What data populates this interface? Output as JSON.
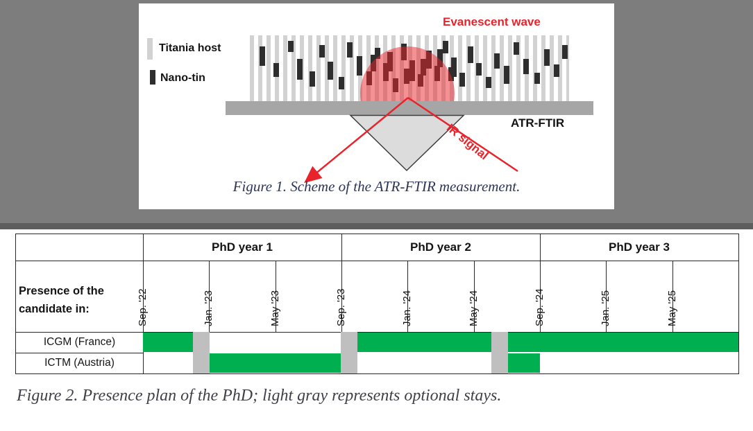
{
  "colors": {
    "page-gray": "#7d7d7d",
    "red": "#e8232b",
    "green": "#00b050",
    "optional-gray": "#bfbfbf",
    "stripe-gray": "#d2d2d2",
    "tin-dark": "#2e2e2e",
    "surface-gray": "#a6a6a6",
    "prism-fill": "#dcdcdc",
    "caption1-color": "#2d3559",
    "caption2-color": "#3f4049"
  },
  "figure1": {
    "evanescent_label": "Evanescent wave",
    "legend": {
      "titania": "Titania host",
      "nanotin": "Nano-tin"
    },
    "atr_label": "ATR-FTIR",
    "ir_signal_label": "IR signal",
    "caption": "Figure 1. Scheme of the ATR-FTIR measurement."
  },
  "figure2": {
    "caption": "Figure 2. Presence plan of the PhD; light gray represents optional stays.",
    "table": {
      "years": [
        "PhD year 1",
        "PhD year 2",
        "PhD year 3"
      ],
      "months": [
        "Sep. '22",
        "Jan. '23",
        "May '23",
        "Sep. '23",
        "Jan. '24",
        "May '24",
        "Sep. '24",
        "Jan. '25",
        "May '25"
      ],
      "presence_header_line1": "Presence of the",
      "presence_header_line2": "candidate in:",
      "rows": [
        {
          "label": "ICGM (France)",
          "segments": [
            {
              "start": 0,
              "end": 8.39
            },
            {
              "start": 36.01,
              "end": 58.51
            },
            {
              "start": 61.31,
              "end": 100
            }
          ]
        },
        {
          "label": "ICTM (Austria)",
          "segments": [
            {
              "start": 11.19,
              "end": 33.22
            },
            {
              "start": 61.31,
              "end": 66.67
            }
          ]
        }
      ],
      "optional_segments": [
        {
          "start": 8.39,
          "end": 11.19
        },
        {
          "start": 33.22,
          "end": 36.01
        },
        {
          "start": 58.51,
          "end": 61.31
        }
      ]
    }
  },
  "chart_data": {
    "type": "gantt",
    "title": "Presence plan of the PhD",
    "categories": [
      "ICGM (France)",
      "ICTM (Austria)"
    ],
    "timeline": [
      "Sep. '22",
      "Jan. '23",
      "May '23",
      "Sep. '23",
      "Jan. '24",
      "May '24",
      "Sep. '24",
      "Jan. '25",
      "May '25"
    ],
    "presence": {
      "ICGM (France)": [
        "Sep '22 - Nov '22",
        "Oct '23 - May '24",
        "Jul '24 - Aug '25"
      ],
      "ICTM (Austria)": [
        "Jan '23 - Aug '23",
        "Jul '24 - Aug '24"
      ]
    },
    "optional_stays": [
      "Dec '22",
      "Sep '23",
      "Jun '24"
    ],
    "legend": {
      "green": "presence",
      "light_gray": "optional stay"
    }
  }
}
